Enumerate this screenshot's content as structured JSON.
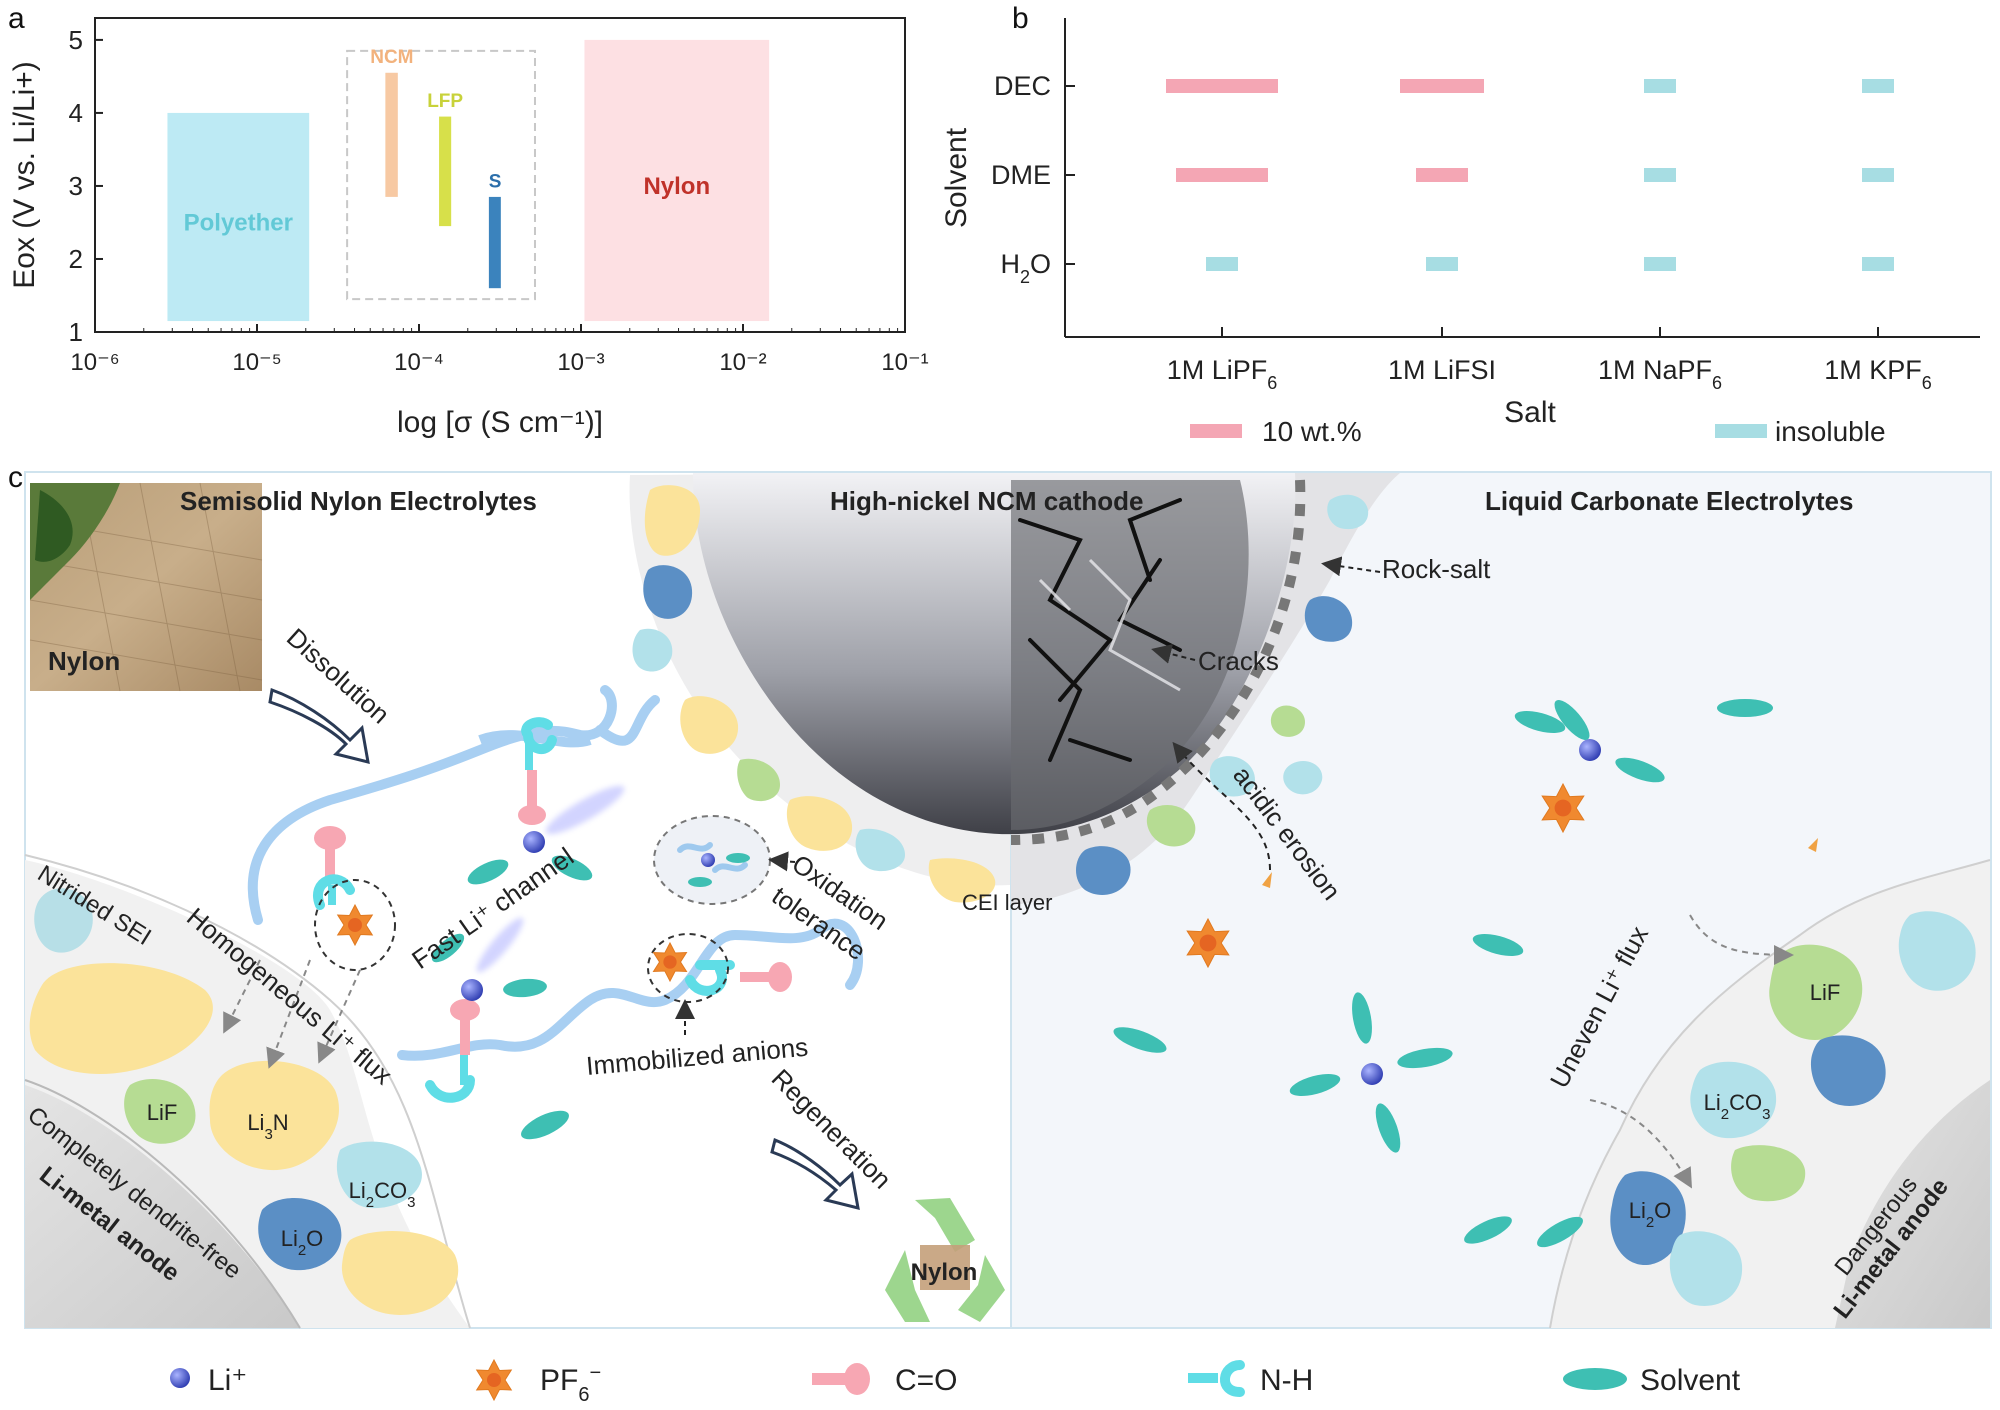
{
  "panels": {
    "a": "a",
    "b": "b",
    "c": "c"
  },
  "chart_data": [
    {
      "type": "bar",
      "panel": "a",
      "title": "",
      "xlabel": "log [σ (S cm⁻¹)]",
      "ylabel": "Eox (V vs. Li/Li+)",
      "xscale": "log",
      "xlim": [
        1e-06,
        0.1
      ],
      "ylim": [
        1,
        5.3
      ],
      "xticks": [
        "10⁻⁶",
        "10⁻⁵",
        "10⁻⁴",
        "10⁻³",
        "10⁻²",
        "10⁻¹"
      ],
      "yticks": [
        "1",
        "2",
        "3",
        "4",
        "5"
      ],
      "grid": false,
      "series": [
        {
          "name": "Polyether",
          "x0": 2.8e-06,
          "x1": 2.1e-05,
          "y0": 1.15,
          "y1": 4.0,
          "color": "#bdeaf4"
        },
        {
          "name": "NCM",
          "x0": 6.2e-05,
          "x1": 7.4e-05,
          "y0": 2.85,
          "y1": 4.55,
          "color": "#f7c9a3"
        },
        {
          "name": "LFP",
          "x0": 0.000133,
          "x1": 0.000158,
          "y0": 2.45,
          "y1": 3.95,
          "color": "#d7e04a"
        },
        {
          "name": "S",
          "x0": 0.00027,
          "x1": 0.00032,
          "y0": 1.6,
          "y1": 2.85,
          "color": "#3b83bd"
        },
        {
          "name": "Nylon",
          "x0": 0.00105,
          "x1": 0.0145,
          "y0": 1.15,
          "y1": 5.0,
          "color": "#fde0e3"
        }
      ],
      "series_label_colors": {
        "Polyether": "#62c9d6",
        "NCM": "#f2b27d",
        "LFP": "#c8d23a",
        "S": "#2c6fab",
        "Nylon": "#c0322a"
      }
    },
    {
      "type": "scatter",
      "panel": "b",
      "title": "",
      "xlabel": "Salt",
      "ylabel": "Solvent",
      "categories": [
        "1M LiPF6",
        "1M LiFSI",
        "1M NaPF6",
        "1M KPF6"
      ],
      "y_categories": [
        "DEC",
        "DME",
        "H2O"
      ],
      "grid": false,
      "legend_position": "bottom",
      "legend": [
        {
          "name": "10 wt.%",
          "color": "#f4a6b4"
        },
        {
          "name": "insoluble",
          "color": "#a7dde3"
        }
      ],
      "points": [
        {
          "salt": "1M LiPF6",
          "solvent": "DEC",
          "state": "10 wt.%"
        },
        {
          "salt": "1M LiFSI",
          "solvent": "DEC",
          "state": "10 wt.%"
        },
        {
          "salt": "1M NaPF6",
          "solvent": "DEC",
          "state": "insoluble"
        },
        {
          "salt": "1M KPF6",
          "solvent": "DEC",
          "state": "insoluble"
        },
        {
          "salt": "1M LiPF6",
          "solvent": "DME",
          "state": "10 wt.%"
        },
        {
          "salt": "1M LiFSI",
          "solvent": "DME",
          "state": "10 wt.%"
        },
        {
          "salt": "1M NaPF6",
          "solvent": "DME",
          "state": "insoluble"
        },
        {
          "salt": "1M KPF6",
          "solvent": "DME",
          "state": "insoluble"
        },
        {
          "salt": "1M LiPF6",
          "solvent": "H2O",
          "state": "insoluble"
        },
        {
          "salt": "1M LiFSI",
          "solvent": "H2O",
          "state": "insoluble"
        },
        {
          "salt": "1M NaPF6",
          "solvent": "H2O",
          "state": "insoluble"
        },
        {
          "salt": "1M KPF6",
          "solvent": "H2O",
          "state": "insoluble"
        }
      ]
    }
  ],
  "diagram": {
    "left_title": "Semisolid Nylon Electrolytes",
    "middle_title": "High-nickel NCM cathode",
    "right_title": "Liquid Carbonate Electrolytes",
    "photo_label": "Nylon",
    "dissolution": "Dissolution",
    "regeneration": "Regeneration",
    "recycle_label": "Nylon",
    "nitrided_sei": "Nitrided SEI",
    "homogeneous_flux": "Homogeneous Li⁺ flux",
    "fast_channel": "Fast Li⁺ channel",
    "oxidation_tolerance_1": "Oxidation",
    "oxidation_tolerance_2": "tolerance",
    "immobilized_anions": "Immobilized anions",
    "cei_layer": "CEI layer",
    "rock_salt": "Rock-salt",
    "cracks": "Cracks",
    "acidic_erosion": "acidic erosion",
    "uneven_flux": "Uneven Li⁺ flux",
    "left_anode_caption": "Completely dendrite-free",
    "left_anode": "Li-metal anode",
    "right_anode_caption": "Dangerous",
    "right_anode": "Li-metal anode",
    "left_sei": {
      "lif": "LiF",
      "li3n": "Li3N",
      "li2co3": "Li2CO3",
      "li2o": "Li2O"
    },
    "right_sei": {
      "lif": "LiF",
      "li2co3": "Li2CO3",
      "li2o": "Li2O"
    }
  },
  "legend": {
    "li": "Li⁺",
    "pf6": "PF6⁻",
    "co": "C=O",
    "nh": "N-H",
    "solvent": "Solvent"
  },
  "colors": {
    "li": "#4a5bd1",
    "pf6": "#f0892f",
    "co": "#f7a7b3",
    "nh": "#5fdde6",
    "solvent": "#3ebfb3",
    "chain": "#9ec9ee",
    "sei_yellow": "#fbe39a",
    "sei_green": "#b6dc93",
    "sei_blue": "#5b8fc5",
    "sei_cyan": "#b2e1ea"
  }
}
